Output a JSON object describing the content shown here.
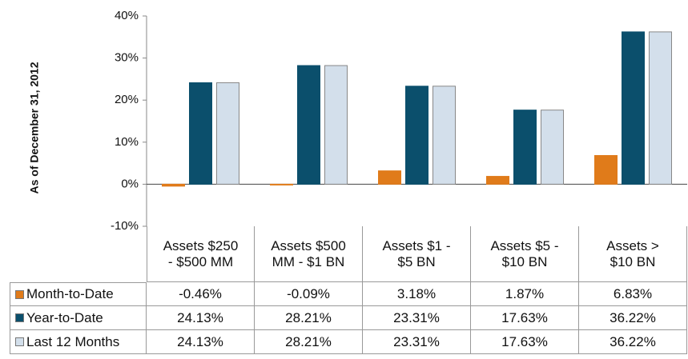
{
  "chart_data": {
    "type": "bar",
    "y_axis_label": "As of December 31, 2012",
    "categories": [
      "Assets $250 - $500 MM",
      "Assets $500 MM - $1 BN",
      "Assets $1 - $5 BN",
      "Assets $5 - $10 BN",
      "Assets > $10 BN"
    ],
    "series": [
      {
        "name": "Month-to-Date",
        "color": "#e07b1a",
        "values": [
          -0.46,
          -0.09,
          3.18,
          1.87,
          6.83
        ],
        "value_labels": [
          "-0.46%",
          "-0.09%",
          "3.18%",
          "1.87%",
          "6.83%"
        ]
      },
      {
        "name": "Year-to-Date",
        "color": "#0b4f6c",
        "values": [
          24.13,
          28.21,
          23.31,
          17.63,
          36.22
        ],
        "value_labels": [
          "24.13%",
          "28.21%",
          "23.31%",
          "17.63%",
          "36.22%"
        ]
      },
      {
        "name": "Last 12 Months",
        "color": "#d3dfeb",
        "values": [
          24.13,
          28.21,
          23.31,
          17.63,
          36.22
        ],
        "value_labels": [
          "24.13%",
          "28.21%",
          "23.31%",
          "17.63%",
          "36.22%"
        ]
      }
    ],
    "ylim": [
      -10,
      40
    ],
    "yticks": [
      {
        "value": -10,
        "label": "-10%"
      },
      {
        "value": 0,
        "label": "0%"
      },
      {
        "value": 10,
        "label": "10%"
      },
      {
        "value": 20,
        "label": "20%"
      },
      {
        "value": 30,
        "label": "30%"
      },
      {
        "value": 40,
        "label": "40%"
      }
    ]
  }
}
